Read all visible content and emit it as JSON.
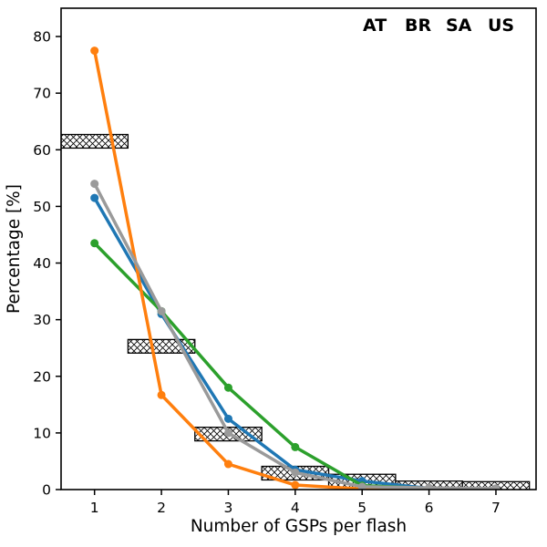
{
  "legend": {
    "items": [
      {
        "label": "AT",
        "color": "#1f77b4"
      },
      {
        "label": "BR",
        "color": "#2ca02c"
      },
      {
        "label": "SA",
        "color": "#ff7f0e"
      },
      {
        "label": "US",
        "color": "#9a9a9a"
      }
    ],
    "position": "top-right"
  },
  "chart_data": {
    "type": "line",
    "x": [
      1,
      2,
      3,
      4,
      5,
      6,
      7
    ],
    "series": [
      {
        "name": "AT",
        "color": "#1f77b4",
        "values": [
          51.5,
          31.0,
          12.5,
          3.5,
          1.5,
          0.2,
          0.1
        ]
      },
      {
        "name": "BR",
        "color": "#2ca02c",
        "values": [
          43.5,
          31.5,
          18.0,
          7.5,
          0.7,
          0.2,
          0.1
        ]
      },
      {
        "name": "SA",
        "color": "#ff7f0e",
        "values": [
          77.5,
          16.7,
          4.5,
          0.8,
          0.1,
          0.05,
          0.02
        ]
      },
      {
        "name": "US",
        "color": "#9a9a9a",
        "values": [
          54.0,
          31.5,
          10.0,
          3.0,
          0.5,
          0.3,
          0.2
        ]
      }
    ],
    "hatched_boxes": {
      "description": "black hatched reference boxes, one per bin",
      "centers": [
        1,
        2,
        3,
        4,
        5,
        6,
        7
      ],
      "values": [
        61.5,
        25.3,
        9.8,
        2.9,
        1.5,
        0.3,
        0.2
      ],
      "bin_width": 1,
      "half_height": 1.2
    },
    "xlabel": "Number of GSPs per flash",
    "ylabel": "Percentage [%]",
    "xlim": [
      0.5,
      7.6
    ],
    "ylim": [
      0,
      85
    ],
    "xticks": [
      1,
      2,
      3,
      4,
      5,
      6,
      7
    ],
    "yticks": [
      0,
      10,
      20,
      30,
      40,
      50,
      60,
      70,
      80
    ],
    "grid": false,
    "marker": "circle",
    "line_width": 3.5
  }
}
